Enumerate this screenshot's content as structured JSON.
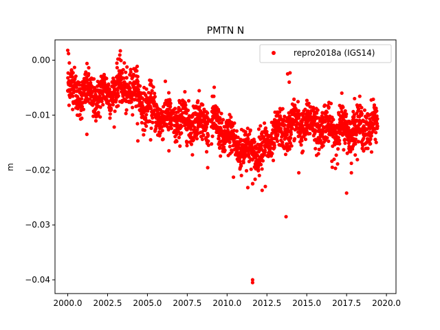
{
  "chart_data": {
    "type": "scatter",
    "title": "PMTN N",
    "xlabel": "",
    "ylabel": "m",
    "xlim": [
      1999.2,
      2020.6
    ],
    "ylim": [
      -0.0425,
      0.0037
    ],
    "xticks": [
      2000.0,
      2002.5,
      2005.0,
      2007.5,
      2010.0,
      2012.5,
      2015.0,
      2017.5,
      2020.0
    ],
    "xtick_labels": [
      "2000.0",
      "2002.5",
      "2005.0",
      "2007.5",
      "2010.0",
      "2012.5",
      "2015.0",
      "2017.5",
      "2020.0"
    ],
    "yticks": [
      0.0,
      -0.01,
      -0.02,
      -0.03,
      -0.04
    ],
    "ytick_labels": [
      "0.00",
      "−0.01",
      "−0.02",
      "−0.03",
      "−0.04"
    ],
    "legend_position": "top-right",
    "grid": false,
    "series": [
      {
        "name": "repro2018a (IGS14)",
        "color": "#ff0000",
        "marker": "circle",
        "x_range": [
          2000.0,
          2019.45
        ],
        "trend_anchors": [
          [
            2000.0,
            -0.005
          ],
          [
            2001.0,
            -0.0062
          ],
          [
            2002.0,
            -0.0065
          ],
          [
            2003.0,
            -0.0052
          ],
          [
            2004.0,
            -0.005
          ],
          [
            2005.0,
            -0.0085
          ],
          [
            2006.0,
            -0.0105
          ],
          [
            2007.0,
            -0.0112
          ],
          [
            2008.0,
            -0.011
          ],
          [
            2009.0,
            -0.0112
          ],
          [
            2010.0,
            -0.014
          ],
          [
            2011.0,
            -0.016
          ],
          [
            2012.0,
            -0.0168
          ],
          [
            2013.0,
            -0.0138
          ],
          [
            2014.0,
            -0.012
          ],
          [
            2015.0,
            -0.0115
          ],
          [
            2016.0,
            -0.012
          ],
          [
            2017.0,
            -0.0128
          ],
          [
            2018.0,
            -0.0125
          ],
          [
            2019.0,
            -0.012
          ],
          [
            2019.45,
            -0.0115
          ]
        ],
        "daily_spread": 0.0018,
        "outliers": [
          [
            2000.0,
            0.0018
          ],
          [
            2000.05,
            0.0012
          ],
          [
            2000.1,
            -0.0005
          ],
          [
            2003.3,
            0.0017
          ],
          [
            2003.15,
            0.0002
          ],
          [
            2003.55,
            -0.0005
          ],
          [
            2001.2,
            -0.0135
          ],
          [
            2004.4,
            -0.0147
          ],
          [
            2005.2,
            -0.0145
          ],
          [
            2006.35,
            -0.0165
          ],
          [
            2008.7,
            -0.0145
          ],
          [
            2010.4,
            -0.0213
          ],
          [
            2010.9,
            -0.021
          ],
          [
            2011.3,
            -0.0232
          ],
          [
            2011.6,
            -0.0225
          ],
          [
            2011.6,
            -0.04
          ],
          [
            2011.6,
            -0.0405
          ],
          [
            2012.2,
            -0.0237
          ],
          [
            2012.4,
            -0.023
          ],
          [
            2013.7,
            -0.0285
          ],
          [
            2013.8,
            -0.0025
          ],
          [
            2013.95,
            -0.0023
          ],
          [
            2013.9,
            -0.004
          ],
          [
            2014.1,
            -0.008
          ],
          [
            2014.5,
            -0.0205
          ],
          [
            2015.0,
            -0.008
          ],
          [
            2016.6,
            -0.0195
          ],
          [
            2016.8,
            -0.0197
          ],
          [
            2017.2,
            -0.006
          ],
          [
            2017.5,
            -0.0242
          ],
          [
            2017.8,
            -0.0205
          ],
          [
            2018.0,
            -0.007
          ]
        ]
      }
    ]
  }
}
